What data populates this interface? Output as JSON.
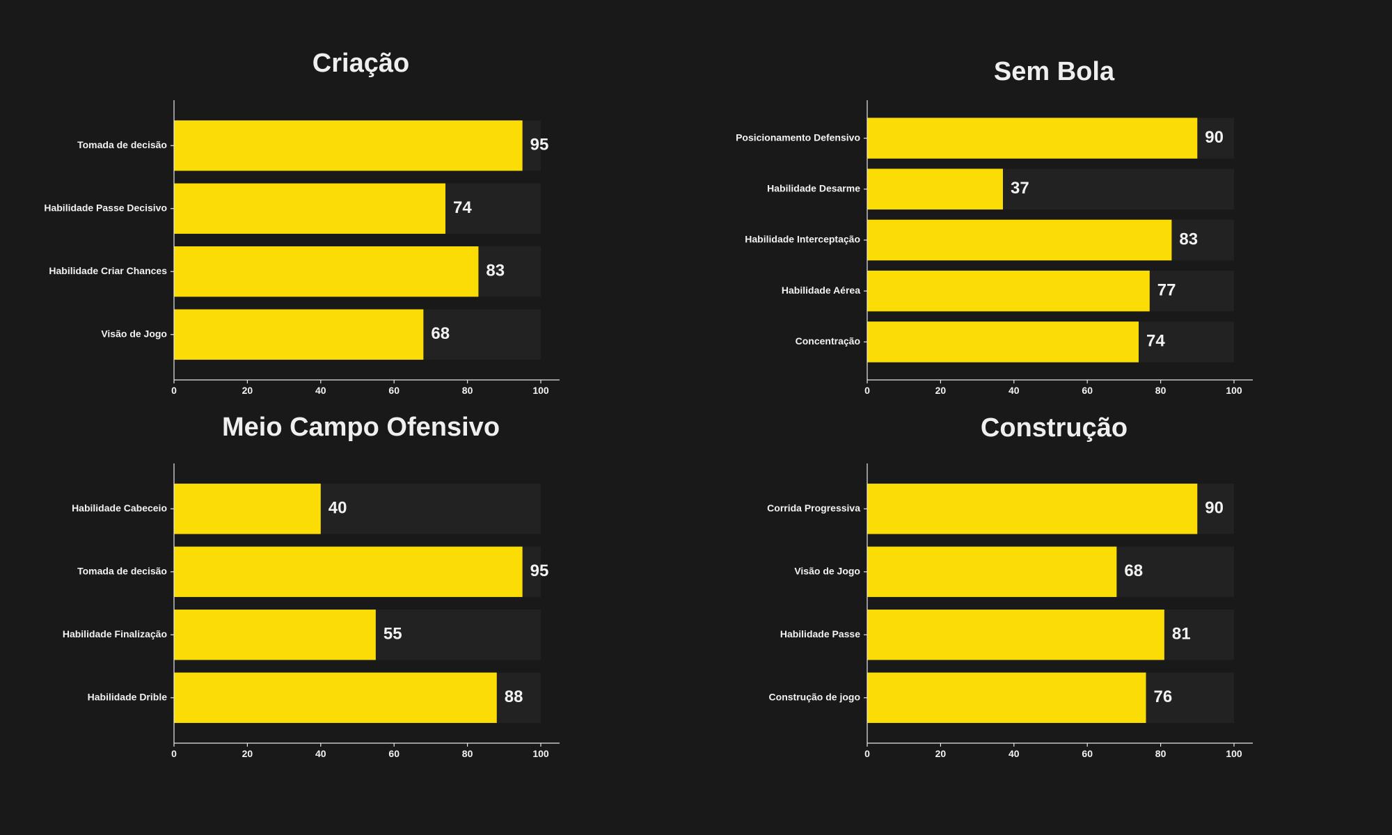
{
  "style": {
    "background": "#191919",
    "bar_color": "#fbdd05",
    "track_color": "#222222",
    "text_color": "#f2f2f2"
  },
  "chart_data": [
    {
      "type": "bar",
      "orientation": "horizontal",
      "title": "Criação",
      "categories": [
        "Tomada de decisão",
        "Habilidade Passe Decisivo",
        "Habilidade Criar Chances",
        "Visão de Jogo"
      ],
      "values": [
        95,
        74,
        83,
        68
      ],
      "xlim": [
        0,
        100
      ],
      "ticks": [
        "0",
        "20",
        "40",
        "60",
        "80",
        "100"
      ]
    },
    {
      "type": "bar",
      "orientation": "horizontal",
      "title": "Sem Bola",
      "categories": [
        "Posicionamento Defensivo",
        "Habilidade Desarme",
        "Habilidade Interceptação",
        "Habilidade Aérea",
        "Concentração"
      ],
      "values": [
        90,
        37,
        83,
        77,
        74
      ],
      "xlim": [
        0,
        100
      ],
      "ticks": [
        "0",
        "20",
        "40",
        "60",
        "80",
        "100"
      ]
    },
    {
      "type": "bar",
      "orientation": "horizontal",
      "title": "Meio Campo Ofensivo",
      "categories": [
        "Habilidade Cabeceio",
        "Tomada de decisão",
        "Habilidade Finalização",
        "Habilidade Drible"
      ],
      "values": [
        40,
        95,
        55,
        88
      ],
      "xlim": [
        0,
        100
      ],
      "ticks": [
        "0",
        "20",
        "40",
        "60",
        "80",
        "100"
      ]
    },
    {
      "type": "bar",
      "orientation": "horizontal",
      "title": "Construção",
      "categories": [
        "Corrida Progressiva",
        "Visão de Jogo",
        "Habilidade Passe",
        "Construção de jogo"
      ],
      "values": [
        90,
        68,
        81,
        76
      ],
      "xlim": [
        0,
        100
      ],
      "ticks": [
        "0",
        "20",
        "40",
        "60",
        "80",
        "100"
      ]
    }
  ]
}
